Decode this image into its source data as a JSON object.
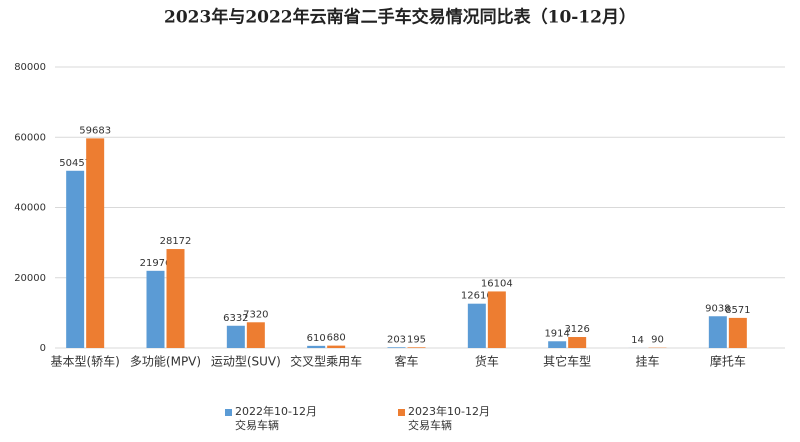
{
  "chart_data": {
    "type": "bar",
    "title": "2023年与2022年云南省二手车交易情况同比表（10-12月）",
    "categories": [
      "基本型(轿车)",
      "多功能(MPV)",
      "运动型(SUV)",
      "交叉型乘用车",
      "客车",
      "货车",
      "其它车型",
      "挂车",
      "摩托车"
    ],
    "series": [
      {
        "name": "2022年10-12月交易车辆",
        "color": "#5b9bd5",
        "values": [
          50457,
          21976,
          6332,
          610,
          203,
          12616,
          1914,
          14,
          9038
        ]
      },
      {
        "name": "2023年10-12月交易车辆",
        "color": "#ed7d31",
        "values": [
          59683,
          28172,
          7320,
          680,
          195,
          16104,
          3126,
          90,
          8571
        ]
      }
    ],
    "ylim": [
      0,
      80000
    ],
    "yticks": [
      0,
      20000,
      40000,
      60000,
      80000
    ],
    "grid": true,
    "legend": "bottom"
  }
}
